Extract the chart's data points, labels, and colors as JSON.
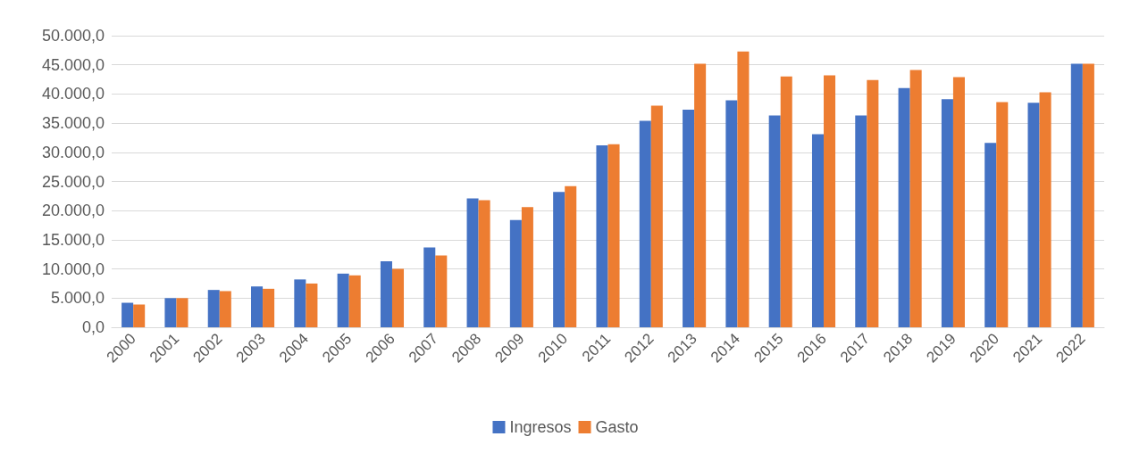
{
  "chart_data": {
    "type": "bar",
    "categories": [
      "2000",
      "2001",
      "2002",
      "2003",
      "2004",
      "2005",
      "2006",
      "2007",
      "2008",
      "2009",
      "2010",
      "2011",
      "2012",
      "2013",
      "2014",
      "2015",
      "2016",
      "2017",
      "2018",
      "2019",
      "2020",
      "2021",
      "2022"
    ],
    "series": [
      {
        "name": "Ingresos",
        "color": "#4472c4",
        "values": [
          4200,
          5000,
          6400,
          7000,
          8200,
          9200,
          11300,
          13700,
          22100,
          18400,
          23200,
          31200,
          35400,
          37300,
          38900,
          36300,
          33100,
          36300,
          41000,
          39100,
          31600,
          38500,
          45200
        ]
      },
      {
        "name": "Gasto",
        "color": "#ed7d31",
        "values": [
          3900,
          5000,
          6200,
          6600,
          7500,
          8900,
          10000,
          12300,
          21800,
          20600,
          24200,
          31400,
          38000,
          45200,
          47300,
          43000,
          43200,
          42400,
          44100,
          42900,
          38600,
          40300,
          45200
        ]
      }
    ],
    "ylim": [
      0,
      50000
    ],
    "yticks": [
      {
        "value": 0,
        "label": "0,0"
      },
      {
        "value": 5000,
        "label": "5.000,0"
      },
      {
        "value": 10000,
        "label": "10.000,0"
      },
      {
        "value": 15000,
        "label": "15.000,0"
      },
      {
        "value": 20000,
        "label": "20.000,0"
      },
      {
        "value": 25000,
        "label": "25.000,0"
      },
      {
        "value": 30000,
        "label": "30.000,0"
      },
      {
        "value": 35000,
        "label": "35.000,0"
      },
      {
        "value": 40000,
        "label": "40.000,0"
      },
      {
        "value": 45000,
        "label": "45.000,0"
      },
      {
        "value": 50000,
        "label": "50.000,0"
      }
    ],
    "grid": "y",
    "legend": "bottom"
  }
}
